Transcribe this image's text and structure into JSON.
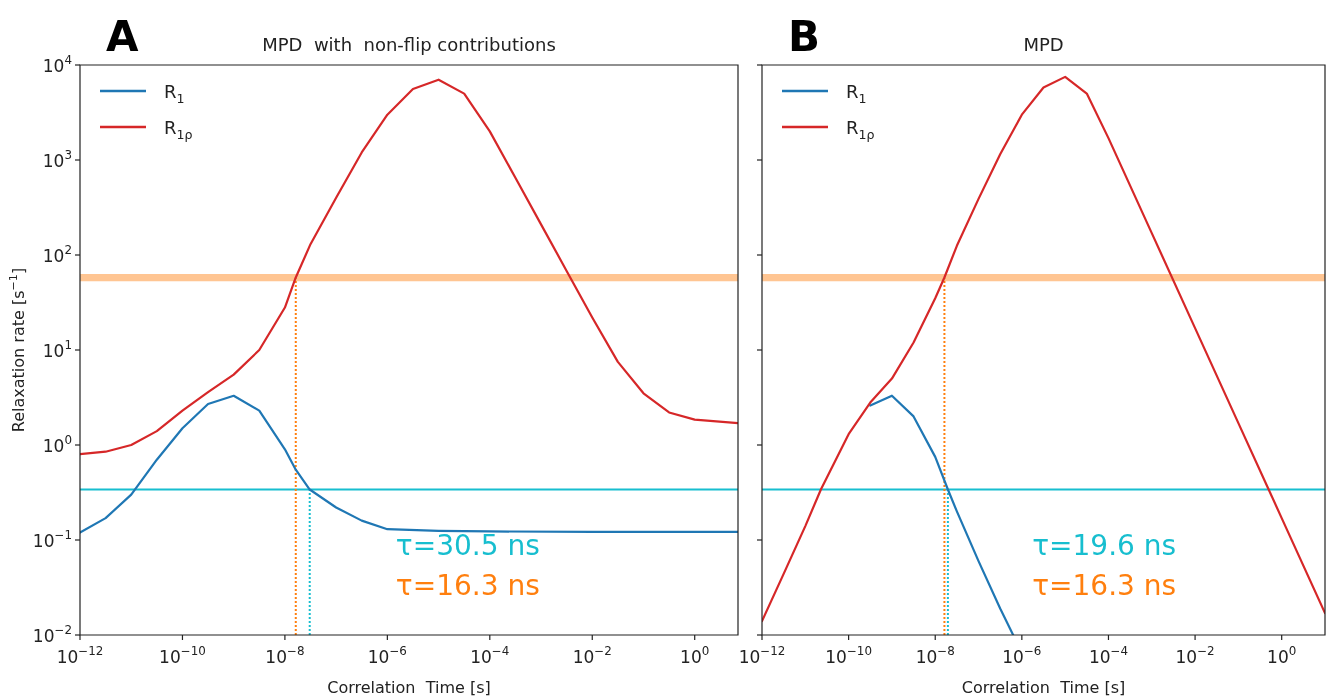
{
  "chart_data": [
    {
      "type": "line",
      "subtitle": "A",
      "title": "MPD  with  non-flip contributions",
      "xlabel": "Correlation  Time [s]",
      "ylabel": "Relaxation rate [s$^{−1}$]",
      "log": "xy",
      "legend": "top left",
      "xlim": [
        1e-12,
        7
      ],
      "ylim": [
        0.01,
        10000
      ],
      "xticks": [
        {
          "value": 1e-12,
          "label": "10$^{−12}$"
        },
        {
          "value": 1e-10,
          "label": "10$^{−10}$"
        },
        {
          "value": 1e-08,
          "label": "10$^{−8}$"
        },
        {
          "value": 1e-06,
          "label": "10$^{−6}$"
        },
        {
          "value": 0.0001,
          "label": "10$^{−4}$"
        },
        {
          "value": 0.01,
          "label": "10$^{−2}$"
        },
        {
          "value": 1,
          "label": "10$^{0}$"
        }
      ],
      "yticks": [
        {
          "value": 0.01,
          "label": "10$^{−2}$"
        },
        {
          "value": 0.1,
          "label": "10$^{−1}$"
        },
        {
          "value": 1,
          "label": "10$^{0}$"
        },
        {
          "value": 10,
          "label": "10$^{1}$"
        },
        {
          "value": 100,
          "label": "10$^{2}$"
        },
        {
          "value": 1000,
          "label": "10$^{3}$"
        },
        {
          "value": 10000,
          "label": "10$^{4}$"
        }
      ],
      "series": [
        {
          "name": "R$_{1}$",
          "color": "#1f77b4",
          "x": [
            1e-12,
            3.16e-12,
            1e-11,
            3.16e-11,
            1e-10,
            3.16e-10,
            1e-09,
            3.16e-09,
            1e-08,
            1.63e-08,
            3.05e-08,
            1e-07,
            3.16e-07,
            1e-06,
            1e-05,
            0.0001,
            0.01,
            1,
            7
          ],
          "values": [
            0.12,
            0.17,
            0.3,
            0.7,
            1.5,
            2.7,
            3.3,
            2.3,
            0.9,
            0.55,
            0.34,
            0.22,
            0.16,
            0.13,
            0.125,
            0.123,
            0.122,
            0.122,
            0.122
          ]
        },
        {
          "name": "R$_{1ρ}$",
          "color": "#d62728",
          "x": [
            1e-12,
            3.16e-12,
            1e-11,
            3.16e-11,
            1e-10,
            3.16e-10,
            1e-09,
            3.16e-09,
            1e-08,
            1.63e-08,
            3.16e-08,
            1e-07,
            3.16e-07,
            1e-06,
            3.16e-06,
            1e-05,
            3.16e-05,
            0.0001,
            0.000316,
            0.001,
            0.00316,
            0.01,
            0.0316,
            0.1,
            0.316,
            1,
            7
          ],
          "values": [
            0.8,
            0.85,
            1.0,
            1.4,
            2.3,
            3.6,
            5.5,
            10,
            28,
            58,
            130,
            400,
            1200,
            3000,
            5600,
            7000,
            5000,
            2000,
            650,
            210,
            68,
            22,
            7.5,
            3.5,
            2.2,
            1.85,
            1.7
          ]
        }
      ],
      "bands": [
        {
          "axis": "y",
          "from": 53,
          "to": 63,
          "color": "#ff7f0e"
        }
      ],
      "ref_lines": [
        {
          "axis": "y",
          "value": 0.34,
          "color": "#17becf"
        },
        {
          "axis": "x",
          "value": 3.05e-08,
          "color": "#17becf",
          "line_style": "dotted"
        },
        {
          "axis": "x",
          "value": 1.63e-08,
          "color": "#ff7f0e",
          "line_style": "dotted"
        }
      ],
      "annotations": [
        "τ=30.5 ns",
        "τ=16.3 ns"
      ]
    },
    {
      "type": "line",
      "subtitle": "B",
      "title": "MPD",
      "xlabel": "Correlation  Time [s]",
      "log": "xy",
      "legend": "top left",
      "tick_labels": "x",
      "xlim": [
        1e-12,
        10
      ],
      "ylim": [
        0.01,
        10000
      ],
      "xticks": [
        {
          "value": 1e-12,
          "label": "10$^{−12}$"
        },
        {
          "value": 1e-10,
          "label": "10$^{−10}$"
        },
        {
          "value": 1e-08,
          "label": "10$^{−8}$"
        },
        {
          "value": 1e-06,
          "label": "10$^{−6}$"
        },
        {
          "value": 0.0001,
          "label": "10$^{−4}$"
        },
        {
          "value": 0.01,
          "label": "10$^{−2}$"
        },
        {
          "value": 1,
          "label": "10$^{0}$"
        }
      ],
      "yticks": [
        {
          "value": 0.01,
          "label": null
        },
        {
          "value": 0.1,
          "label": null
        },
        {
          "value": 1,
          "label": null
        },
        {
          "value": 10,
          "label": null
        },
        {
          "value": 100,
          "label": null
        },
        {
          "value": 1000,
          "label": null
        },
        {
          "value": 10000,
          "label": null
        }
      ],
      "series": [
        {
          "name": "R$_{1}$",
          "color": "#1f77b4",
          "x": [
            3.16e-10,
            1e-09,
            3.16e-09,
            1e-08,
            1.96e-08,
            3.16e-08,
            1e-07,
            3.16e-07,
            6.3e-07
          ],
          "values": [
            2.6,
            3.3,
            2.0,
            0.75,
            0.34,
            0.2,
            0.06,
            0.019,
            0.01
          ]
        },
        {
          "name": "R$_{1ρ}$",
          "color": "#d62728",
          "x": [
            1e-12,
            3.16e-12,
            1e-11,
            2.29e-11,
            1e-10,
            3.16e-10,
            1e-09,
            3.16e-09,
            1e-08,
            1.63e-08,
            3.16e-08,
            1e-07,
            3.16e-07,
            1e-06,
            3.16e-06,
            1e-05,
            3.16e-05,
            0.0001,
            0.001,
            0.01,
            0.1,
            0.5,
            1,
            10
          ],
          "values": [
            0.014,
            0.044,
            0.14,
            0.34,
            1.3,
            2.8,
            5,
            12,
            35,
            58,
            125,
            390,
            1150,
            3000,
            5800,
            7500,
            5000,
            1700,
            170,
            17,
            1.7,
            0.34,
            0.17,
            0.017
          ]
        }
      ],
      "bands": [
        {
          "axis": "y",
          "from": 53,
          "to": 63,
          "color": "#ff7f0e"
        }
      ],
      "ref_lines": [
        {
          "axis": "y",
          "value": 0.34,
          "color": "#17becf"
        },
        {
          "axis": "x",
          "value": 1.96e-08,
          "color": "#17becf",
          "line_style": "dotted"
        },
        {
          "axis": "x",
          "value": 1.63e-08,
          "color": "#ff7f0e",
          "line_style": "dotted"
        }
      ],
      "annotations": [
        "τ=19.6 ns",
        "τ=16.3 ns"
      ]
    }
  ]
}
